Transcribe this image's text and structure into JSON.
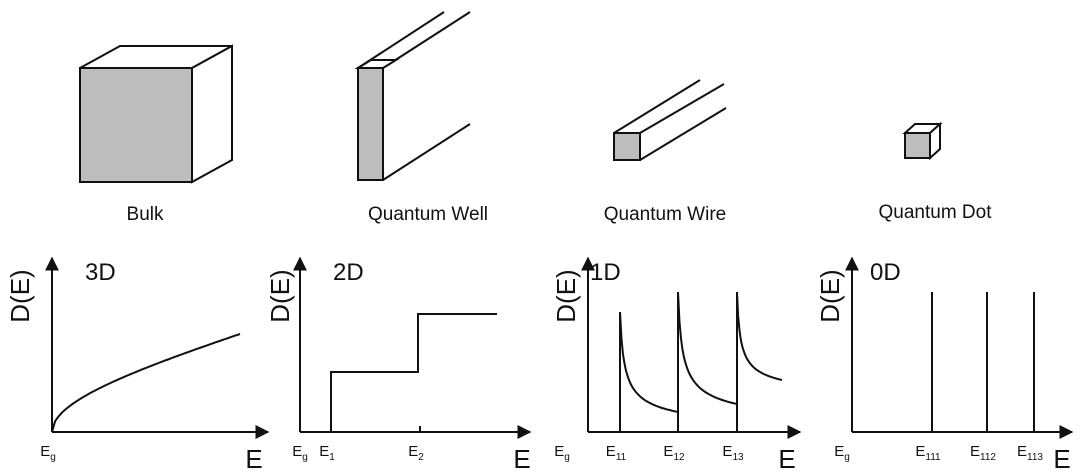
{
  "panels": [
    {
      "shape_label": "Bulk",
      "dimension": "3D",
      "y_label": "D(E)",
      "x_label": "E",
      "ticks": [
        {
          "base": "E",
          "sub": "g"
        }
      ]
    },
    {
      "shape_label": "Quantum Well",
      "dimension": "2D",
      "y_label": "D(E)",
      "x_label": "E",
      "ticks": [
        {
          "base": "E",
          "sub": "g"
        },
        {
          "base": "E",
          "sub": "1"
        },
        {
          "base": "E",
          "sub": "2"
        }
      ]
    },
    {
      "shape_label": "Quantum Wire",
      "dimension": "1D",
      "y_label": "D(E)",
      "x_label": "E",
      "ticks": [
        {
          "base": "E",
          "sub": "g"
        },
        {
          "base": "E",
          "sub": "11"
        },
        {
          "base": "E",
          "sub": "12"
        },
        {
          "base": "E",
          "sub": "13"
        }
      ]
    },
    {
      "shape_label": "Quantum Dot",
      "dimension": "0D",
      "y_label": "D(E)",
      "x_label": "E",
      "ticks": [
        {
          "base": "E",
          "sub": "g"
        },
        {
          "base": "E",
          "sub": "111"
        },
        {
          "base": "E",
          "sub": "112"
        },
        {
          "base": "E",
          "sub": "113"
        }
      ]
    }
  ]
}
